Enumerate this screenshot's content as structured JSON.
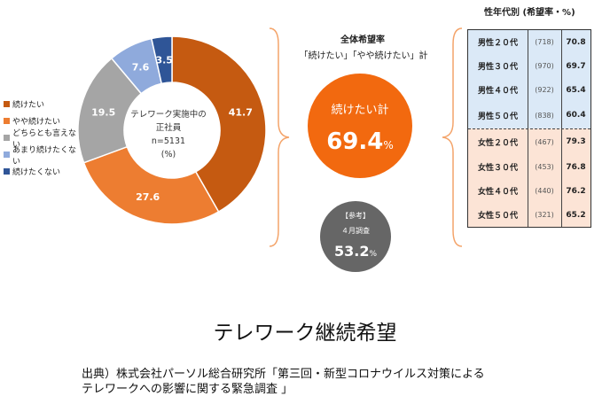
{
  "chart_data": [
    {
      "type": "pie",
      "categories": [
        "続けたい",
        "やや続けたい",
        "どちらとも言えない",
        "あまり続けたくない",
        "続けたくない"
      ],
      "values": [
        41.7,
        27.6,
        19.5,
        7.6,
        3.5
      ],
      "colors": [
        "#c55a11",
        "#ed7d31",
        "#a5a5a5",
        "#8faadc",
        "#2f5597"
      ],
      "center_text": [
        "テレワーク実施中の",
        "正社員",
        "n=5131",
        "(%)"
      ],
      "legend_position": "left"
    },
    {
      "type": "table",
      "title": "性年代別 (希望率・%)",
      "rows": [
        {
          "label": "男性２０代",
          "n": "(718)",
          "value": "70.8"
        },
        {
          "label": "男性３０代",
          "n": "(970)",
          "value": "69.7"
        },
        {
          "label": "男性４０代",
          "n": "(922)",
          "value": "65.4"
        },
        {
          "label": "男性５０代",
          "n": "(838)",
          "value": "60.4"
        },
        {
          "label": "女性２０代",
          "n": "(467)",
          "value": "79.3"
        },
        {
          "label": "女性３０代",
          "n": "(453)",
          "value": "76.8"
        },
        {
          "label": "女性４０代",
          "n": "(440)",
          "value": "76.2"
        },
        {
          "label": "女性５０代",
          "n": "(321)",
          "value": "65.2"
        }
      ]
    }
  ],
  "overall": {
    "title": "全体希望率",
    "subtitle": "「続けたい」「やや続けたい」計",
    "label": "続けたい計",
    "value": "69.4",
    "unit": "%"
  },
  "reference": {
    "tag": "【参考】",
    "month": "４月調査",
    "value": "53.2",
    "unit": "%"
  },
  "colors": {
    "overall_circle": "#f2690f",
    "reference_circle": "#666666",
    "male_bg": "#dbe9f7",
    "female_bg": "#fce4d6"
  },
  "main_title": "テレワーク継続希望",
  "source": {
    "line1": "出典）株式会社パーソル総合研究所「第三回・新型コロナウイルス対策による",
    "line2": "テレワークへの影響に関する緊急調査 」"
  }
}
